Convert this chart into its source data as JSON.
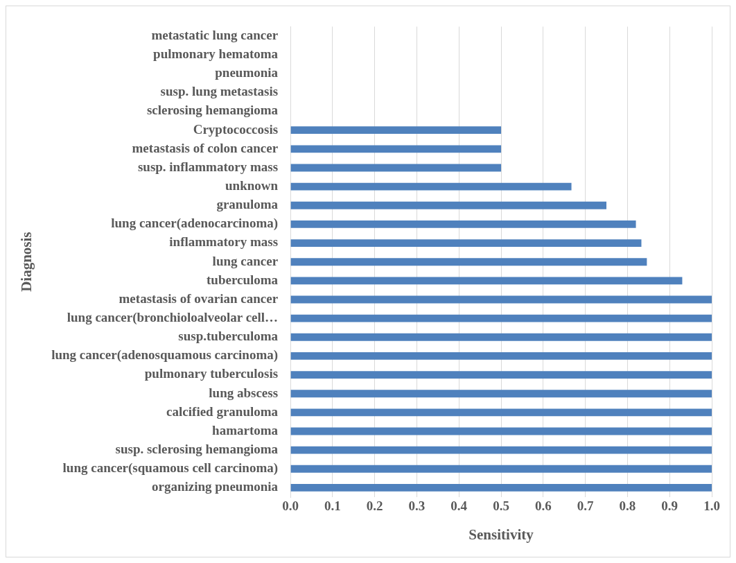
{
  "chart_data": {
    "type": "bar",
    "orientation": "horizontal",
    "xlabel": "Sensitivity",
    "ylabel": "Diagnosis",
    "categories": [
      "metastatic lung cancer",
      "pulmonary hematoma",
      "pneumonia",
      "susp. lung metastasis",
      "sclerosing hemangioma",
      "Cryptococcosis",
      "metastasis of colon cancer",
      "susp. inflammatory mass",
      "unknown",
      "granuloma",
      "lung cancer(adenocarcinoma)",
      "inflammatory mass",
      "lung cancer",
      "tuberculoma",
      "metastasis of ovarian cancer",
      "lung cancer(bronchioloalveolar cell…",
      "susp.tuberculoma",
      "lung cancer(adenosquamous carcinoma)",
      "pulmonary tuberculosis",
      "lung abscess",
      "calcified granuloma",
      "hamartoma",
      "susp. sclerosing hemangioma",
      "lung cancer(squamous cell carcinoma)",
      "organizing pneumonia"
    ],
    "values": [
      0,
      0,
      0,
      0,
      0,
      0.5,
      0.5,
      0.5,
      0.667,
      0.75,
      0.82,
      0.833,
      0.846,
      0.93,
      1,
      1,
      1,
      1,
      1,
      1,
      1,
      1,
      1,
      1,
      1
    ],
    "color": "#4f81bd",
    "xlim": [
      0,
      1
    ],
    "xticks": [
      {
        "value": 0,
        "label": "0.0"
      },
      {
        "value": 0.1,
        "label": "0.1"
      },
      {
        "value": 0.2,
        "label": "0.2"
      },
      {
        "value": 0.3,
        "label": "0.3"
      },
      {
        "value": 0.4,
        "label": "0.4"
      },
      {
        "value": 0.5,
        "label": "0.5"
      },
      {
        "value": 0.6,
        "label": "0.6"
      },
      {
        "value": 0.7,
        "label": "0.7"
      },
      {
        "value": 0.8,
        "label": "0.8"
      },
      {
        "value": 0.9,
        "label": "0.9"
      },
      {
        "value": 1,
        "label": "1.0"
      }
    ],
    "grid": "x",
    "legend": false
  }
}
